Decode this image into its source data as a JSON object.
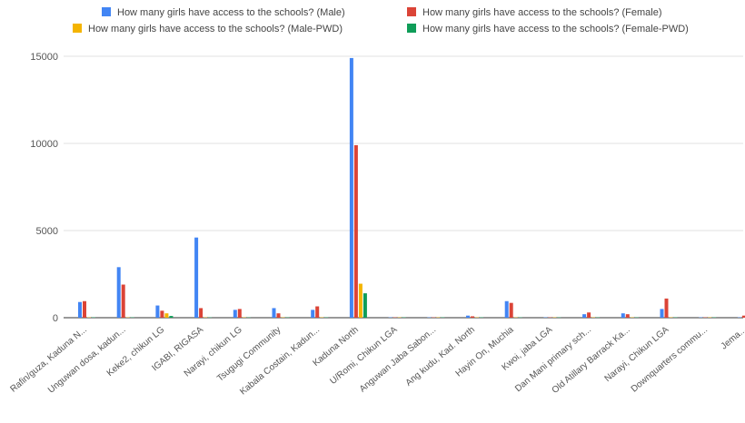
{
  "chart_data": {
    "type": "bar",
    "title": "",
    "xlabel": "",
    "ylabel": "",
    "ylim": [
      0,
      15000
    ],
    "yticks": [
      0,
      5000,
      10000,
      15000
    ],
    "grid": "horizontal",
    "legend_position": "top",
    "categories": [
      "Rafin/guza, Kaduna N...",
      "Unguwan dosa, kadun...",
      "Keke2, chikun LG",
      "IGABI, RIGASA",
      "Narayi, chikun LG",
      "Tsugugi Community",
      "Kabala Costain, Kadun...",
      "Kaduna North",
      "U/Romi, Chikun LGA",
      "Anguwan Jaba Sabon...",
      "Ang kudu, Kad. North",
      "Hayin On, Muchia",
      "Kwoi, jaba LGA",
      "Dan Mani primary sch...",
      "Old Atillary Barrack Ka...",
      "Narayi, Chikun LGA",
      "Downquarters commu...",
      "Jema..."
    ],
    "series": [
      {
        "name": "How many girls have access to the schools? (Male)",
        "color": "#4285F4",
        "values": [
          900,
          2900,
          700,
          4600,
          450,
          550,
          450,
          14900,
          20,
          20,
          120,
          950,
          20,
          200,
          250,
          500,
          20,
          20
        ]
      },
      {
        "name": "How many girls have access to the schools? (Female)",
        "color": "#DB4437",
        "values": [
          950,
          1900,
          400,
          550,
          500,
          250,
          650,
          9900,
          20,
          20,
          80,
          850,
          20,
          300,
          200,
          1100,
          20,
          120
        ]
      },
      {
        "name": "How many girls have access to the schools? (Male-PWD)",
        "color": "#F4B400",
        "values": [
          20,
          20,
          250,
          20,
          20,
          20,
          20,
          1950,
          20,
          20,
          20,
          20,
          20,
          20,
          20,
          20,
          20,
          20
        ]
      },
      {
        "name": "How many girls have access to the schools? (Female-PWD)",
        "color": "#0F9D58",
        "values": [
          20,
          20,
          100,
          20,
          20,
          20,
          20,
          1400,
          20,
          20,
          20,
          20,
          20,
          20,
          20,
          20,
          20,
          20
        ]
      }
    ]
  }
}
